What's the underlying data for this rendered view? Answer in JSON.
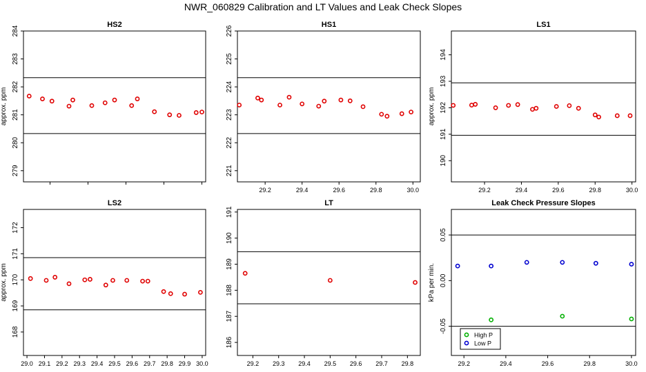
{
  "figure": {
    "title": "NWR_060829  Calibration and LT Values and Leak Check Slopes"
  },
  "chart_data": [
    {
      "type": "scatter",
      "title": "HS2",
      "ylabel": "approx. ppm",
      "xlabel": "",
      "xlim": [
        29.06,
        30.02
      ],
      "ylim": [
        278.6,
        284.0
      ],
      "xticks": [
        29.2,
        29.4,
        29.6,
        29.8,
        30.0
      ],
      "xtick_labels": [],
      "yticks": [
        279,
        280,
        281,
        282,
        283,
        284
      ],
      "hlines": [
        280.33,
        282.33
      ],
      "series": [
        {
          "color": "#e00000",
          "marker": "circle",
          "x": [
            29.09,
            29.16,
            29.21,
            29.3,
            29.32,
            29.42,
            29.49,
            29.54,
            29.63,
            29.66,
            29.75,
            29.83,
            29.88,
            29.97,
            30.0
          ],
          "y": [
            281.67,
            281.57,
            281.49,
            281.31,
            281.53,
            281.33,
            281.43,
            281.53,
            281.33,
            281.57,
            281.11,
            281.0,
            280.98,
            281.08,
            281.1
          ]
        }
      ]
    },
    {
      "type": "scatter",
      "title": "HS1",
      "ylabel": "",
      "xlabel": "",
      "xlim": [
        29.05,
        30.04
      ],
      "ylim": [
        220.6,
        226.0
      ],
      "xticks": [
        29.2,
        29.4,
        29.6,
        29.8,
        30.0
      ],
      "xtick_labels": [
        "29.2",
        "29.4",
        "29.6",
        "29.8",
        "30.0"
      ],
      "yticks": [
        221,
        222,
        223,
        224,
        225,
        226
      ],
      "hlines": [
        222.33,
        224.33
      ],
      "series": [
        {
          "color": "#e00000",
          "marker": "circle",
          "x": [
            29.06,
            29.16,
            29.18,
            29.28,
            29.33,
            29.4,
            29.49,
            29.52,
            29.61,
            29.66,
            29.73,
            29.83,
            29.86,
            29.94,
            29.99
          ],
          "y": [
            223.35,
            223.6,
            223.53,
            223.35,
            223.63,
            223.39,
            223.31,
            223.49,
            223.53,
            223.5,
            223.29,
            223.02,
            222.95,
            223.04,
            223.1
          ]
        }
      ]
    },
    {
      "type": "scatter",
      "title": "LS1",
      "ylabel": "approx. ppm",
      "xlabel": "",
      "xlim": [
        29.02,
        30.02
      ],
      "ylim": [
        189.2,
        194.9
      ],
      "xticks": [
        29.2,
        29.4,
        29.6,
        29.8,
        30.0
      ],
      "xtick_labels": [
        "29.2",
        "29.4",
        "29.6",
        "29.8",
        "30.0"
      ],
      "yticks": [
        190,
        191,
        192,
        193,
        194
      ],
      "hlines": [
        190.96,
        192.94
      ],
      "series": [
        {
          "color": "#e00000",
          "marker": "circle",
          "x": [
            29.03,
            29.13,
            29.15,
            29.26,
            29.33,
            29.38,
            29.46,
            29.48,
            29.59,
            29.66,
            29.71,
            29.8,
            29.82,
            29.92,
            29.99
          ],
          "y": [
            192.09,
            192.1,
            192.13,
            192.0,
            192.09,
            192.12,
            191.94,
            191.98,
            192.05,
            192.08,
            191.98,
            191.73,
            191.65,
            191.7,
            191.7
          ]
        }
      ]
    },
    {
      "type": "scatter",
      "title": "LS2",
      "ylabel": "approx. ppm",
      "xlabel": "",
      "xlim": [
        28.98,
        30.02
      ],
      "ylim": [
        167.1,
        172.7
      ],
      "xticks": [
        29.0,
        29.1,
        29.2,
        29.3,
        29.4,
        29.5,
        29.6,
        29.7,
        29.8,
        29.9,
        30.0
      ],
      "xtick_labels": [
        "29.0",
        "29.1",
        "29.2",
        "29.3",
        "29.4",
        "29.5",
        "29.6",
        "29.7",
        "29.8",
        "29.9",
        "30.0"
      ],
      "yticks": [
        168,
        169,
        170,
        171,
        172
      ],
      "hlines": [
        168.85,
        170.85
      ],
      "series": [
        {
          "color": "#e00000",
          "marker": "circle",
          "x": [
            29.02,
            29.11,
            29.16,
            29.24,
            29.33,
            29.36,
            29.45,
            29.49,
            29.57,
            29.66,
            29.69,
            29.78,
            29.82,
            29.9,
            29.99
          ],
          "y": [
            170.05,
            169.98,
            170.1,
            169.85,
            170.0,
            170.02,
            169.8,
            169.98,
            169.98,
            169.95,
            169.95,
            169.55,
            169.47,
            169.45,
            169.52
          ]
        }
      ]
    },
    {
      "type": "scatter",
      "title": "LT",
      "ylabel": "",
      "xlabel": "",
      "xlim": [
        29.14,
        29.85
      ],
      "ylim": [
        185.5,
        191.1
      ],
      "xticks": [
        29.2,
        29.3,
        29.4,
        29.5,
        29.6,
        29.7,
        29.8
      ],
      "xtick_labels": [
        "29.2",
        "29.3",
        "29.4",
        "29.5",
        "29.6",
        "29.7",
        "29.8"
      ],
      "yticks": [
        186,
        187,
        188,
        189,
        190,
        191
      ],
      "hlines": [
        187.48,
        189.48
      ],
      "series": [
        {
          "color": "#e00000",
          "marker": "circle",
          "x": [
            29.17,
            29.5,
            29.83
          ],
          "y": [
            188.65,
            188.38,
            188.3
          ]
        }
      ]
    },
    {
      "type": "scatter",
      "title": "Leak Check Pressure Slopes",
      "ylabel": "kPa per min.",
      "xlabel": "",
      "xlim": [
        29.14,
        30.02
      ],
      "ylim": [
        -0.082,
        0.078
      ],
      "xticks": [
        29.2,
        29.4,
        29.6,
        29.8,
        30.0
      ],
      "xtick_labels": [
        "29.2",
        "29.4",
        "29.6",
        "29.8",
        "30.0"
      ],
      "yticks": [
        -0.05,
        0.0,
        0.05
      ],
      "ytick_labels": [
        "-0.05",
        "0.00",
        "0.05"
      ],
      "hlines": [
        -0.05,
        0.05
      ],
      "legend": {
        "placement": "bottom-left",
        "entries": [
          "High P",
          "Low P"
        ]
      },
      "series": [
        {
          "name": "High P",
          "color": "#00b000",
          "marker": "circle",
          "x": [
            29.33,
            29.67,
            30.0
          ],
          "y": [
            -0.043,
            -0.039,
            -0.042
          ]
        },
        {
          "name": "Low P",
          "color": "#0000d0",
          "marker": "circle",
          "x": [
            29.17,
            29.33,
            29.5,
            29.67,
            29.83,
            30.0
          ],
          "y": [
            0.016,
            0.016,
            0.02,
            0.02,
            0.019,
            0.018
          ]
        }
      ]
    }
  ]
}
